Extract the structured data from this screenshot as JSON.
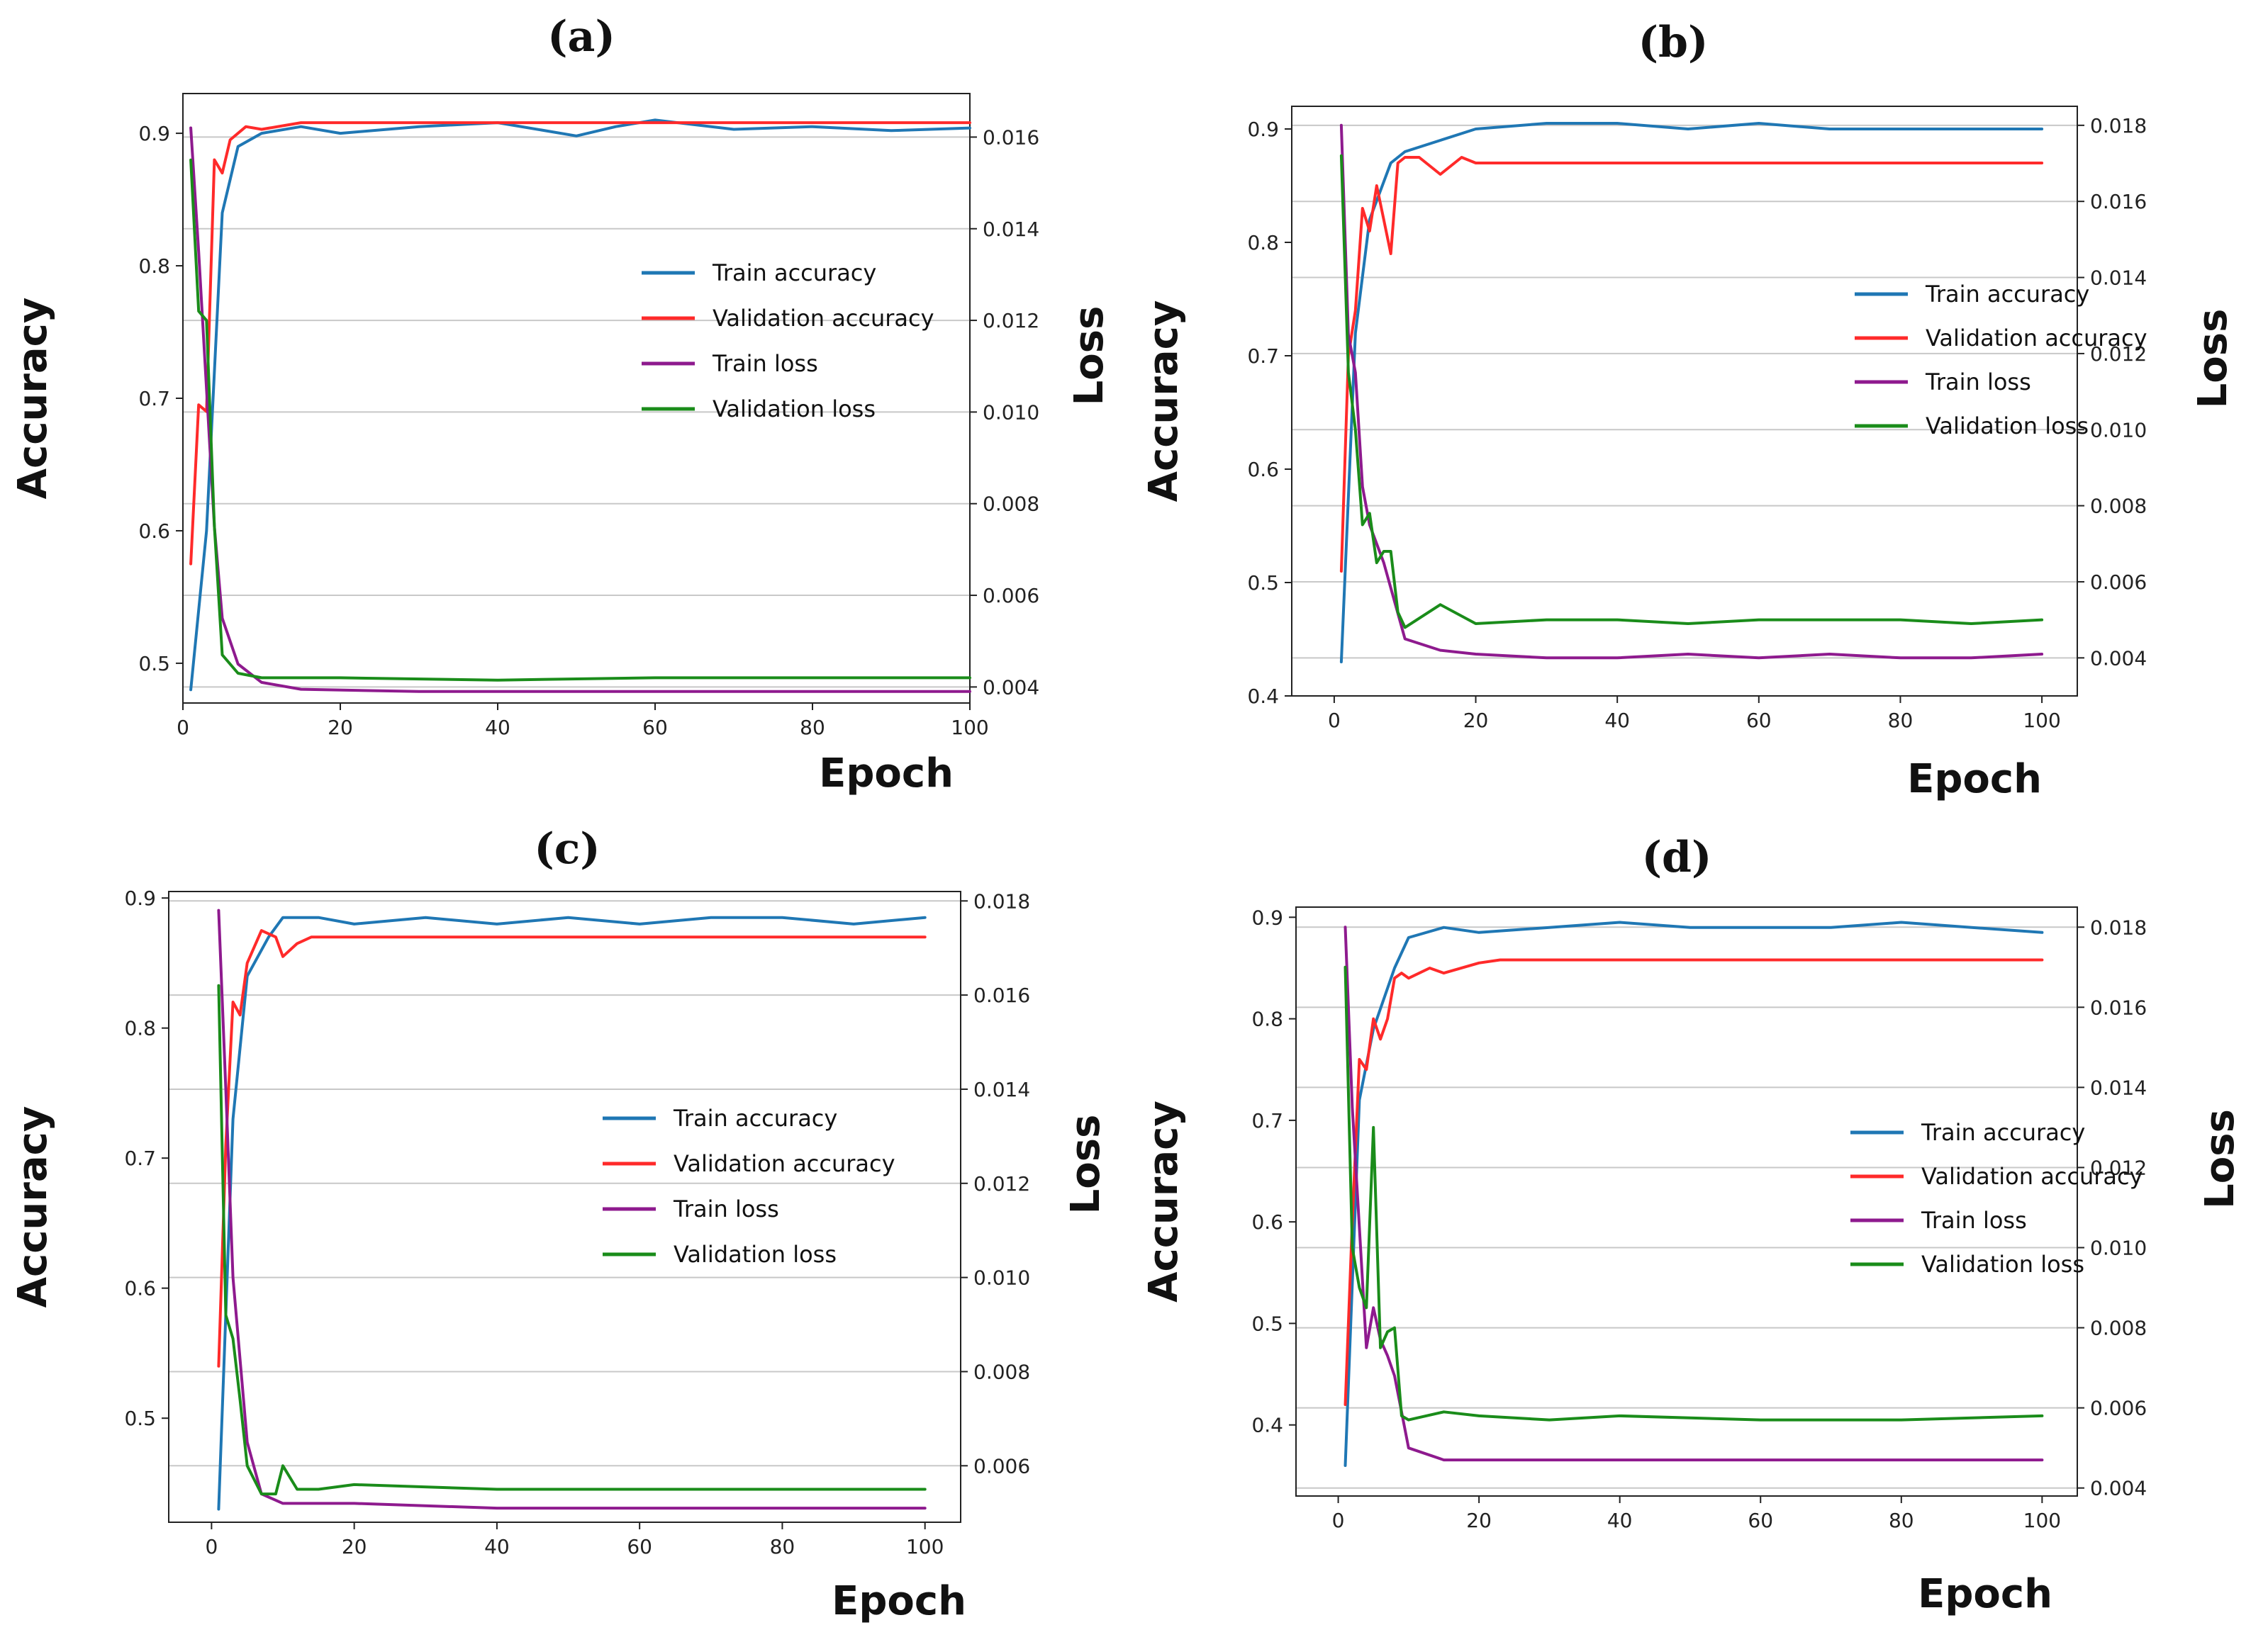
{
  "chart_data": [
    {
      "type": "line",
      "panel": "(a)",
      "xlabel": "Epoch",
      "ylabel": "Accuracy",
      "y2label": "Loss",
      "xlim": [
        0,
        100
      ],
      "ylim": [
        0.47,
        0.93
      ],
      "y2lim": [
        0.00365,
        0.01695
      ],
      "xticks": [
        0,
        20,
        40,
        60,
        80,
        100
      ],
      "yticks": [
        0.5,
        0.6,
        0.7,
        0.8,
        0.9
      ],
      "y2ticks": [
        0.004,
        0.006,
        0.008,
        0.01,
        0.012,
        0.014,
        0.016
      ],
      "legend": [
        "Train accuracy",
        "Validation accuracy",
        "Train loss",
        "Validation loss"
      ],
      "legend_position": "center-right",
      "series": [
        {
          "name": "Train accuracy",
          "axis": "left",
          "color": "#1f77b4",
          "x": [
            1,
            3,
            5,
            7,
            10,
            15,
            20,
            30,
            40,
            50,
            55,
            60,
            70,
            80,
            90,
            100
          ],
          "values": [
            0.48,
            0.6,
            0.84,
            0.89,
            0.9,
            0.905,
            0.9,
            0.905,
            0.908,
            0.898,
            0.905,
            0.91,
            0.903,
            0.905,
            0.902,
            0.904
          ]
        },
        {
          "name": "Validation accuracy",
          "axis": "left",
          "color": "#ff2a2a",
          "x": [
            1,
            2,
            3,
            4,
            5,
            6,
            8,
            10,
            15,
            100
          ],
          "values": [
            0.575,
            0.695,
            0.69,
            0.88,
            0.87,
            0.895,
            0.905,
            0.903,
            0.908,
            0.908
          ]
        },
        {
          "name": "Train loss",
          "axis": "right",
          "color": "#8e1a8e",
          "x": [
            1,
            2,
            3,
            4,
            5,
            7,
            10,
            15,
            30,
            50,
            70,
            90,
            100
          ],
          "values": [
            0.0162,
            0.0135,
            0.0105,
            0.0075,
            0.0055,
            0.0045,
            0.0041,
            0.00395,
            0.0039,
            0.0039,
            0.0039,
            0.0039,
            0.0039
          ]
        },
        {
          "name": "Validation loss",
          "axis": "right",
          "color": "#1a8c1a",
          "x": [
            1,
            2,
            3,
            4,
            5,
            7,
            10,
            20,
            40,
            60,
            80,
            100
          ],
          "values": [
            0.0155,
            0.0122,
            0.012,
            0.0075,
            0.0047,
            0.0043,
            0.0042,
            0.0042,
            0.00415,
            0.0042,
            0.0042,
            0.0042
          ]
        }
      ]
    },
    {
      "type": "line",
      "panel": "(b)",
      "xlabel": "Epoch",
      "ylabel": "Accuracy",
      "y2label": "Loss",
      "xlim": [
        -6,
        105
      ],
      "ylim": [
        0.4,
        0.92
      ],
      "y2lim": [
        0.003,
        0.0185
      ],
      "xticks": [
        0,
        20,
        40,
        60,
        80,
        100
      ],
      "yticks": [
        0.4,
        0.5,
        0.6,
        0.7,
        0.8,
        0.9
      ],
      "y2ticks": [
        0.004,
        0.006,
        0.008,
        0.01,
        0.012,
        0.014,
        0.016,
        0.018
      ],
      "legend": [
        "Train accuracy",
        "Validation accuracy",
        "Train loss",
        "Validation loss"
      ],
      "legend_position": "center-right",
      "series": [
        {
          "name": "Train accuracy",
          "axis": "left",
          "color": "#1f77b4",
          "x": [
            1,
            3,
            5,
            8,
            10,
            15,
            20,
            30,
            40,
            50,
            60,
            70,
            80,
            90,
            100
          ],
          "values": [
            0.43,
            0.72,
            0.82,
            0.87,
            0.88,
            0.89,
            0.9,
            0.905,
            0.905,
            0.9,
            0.905,
            0.9,
            0.9,
            0.9,
            0.9
          ]
        },
        {
          "name": "Validation accuracy",
          "axis": "left",
          "color": "#ff2a2a",
          "x": [
            1,
            2,
            3,
            4,
            5,
            6,
            7,
            8,
            9,
            10,
            12,
            15,
            18,
            20,
            100
          ],
          "values": [
            0.51,
            0.7,
            0.74,
            0.83,
            0.81,
            0.85,
            0.82,
            0.79,
            0.87,
            0.875,
            0.875,
            0.86,
            0.875,
            0.87,
            0.87
          ]
        },
        {
          "name": "Train loss",
          "axis": "right",
          "color": "#8e1a8e",
          "x": [
            1,
            2,
            3,
            4,
            5,
            7,
            10,
            15,
            20,
            30,
            40,
            50,
            60,
            70,
            80,
            90,
            100
          ],
          "values": [
            0.018,
            0.0125,
            0.0115,
            0.0085,
            0.0075,
            0.0065,
            0.0045,
            0.0042,
            0.0041,
            0.004,
            0.004,
            0.0041,
            0.004,
            0.0041,
            0.004,
            0.004,
            0.0041
          ]
        },
        {
          "name": "Validation loss",
          "axis": "right",
          "color": "#1a8c1a",
          "x": [
            1,
            2,
            3,
            4,
            5,
            6,
            7,
            8,
            9,
            10,
            15,
            20,
            30,
            40,
            50,
            60,
            70,
            80,
            90,
            100
          ],
          "values": [
            0.0172,
            0.0115,
            0.01,
            0.0075,
            0.0078,
            0.0065,
            0.0068,
            0.0068,
            0.0052,
            0.0048,
            0.0054,
            0.0049,
            0.005,
            0.005,
            0.0049,
            0.005,
            0.005,
            0.005,
            0.0049,
            0.005
          ]
        }
      ]
    },
    {
      "type": "line",
      "panel": "(c)",
      "xlabel": "Epoch",
      "ylabel": "Accuracy",
      "y2label": "Loss",
      "xlim": [
        -6,
        105
      ],
      "ylim": [
        0.42,
        0.905
      ],
      "y2lim": [
        0.0048,
        0.0182
      ],
      "xticks": [
        0,
        20,
        40,
        60,
        80,
        100
      ],
      "yticks": [
        0.5,
        0.6,
        0.7,
        0.8,
        0.9
      ],
      "y2ticks": [
        0.006,
        0.008,
        0.01,
        0.012,
        0.014,
        0.016,
        0.018
      ],
      "legend": [
        "Train accuracy",
        "Validation accuracy",
        "Train loss",
        "Validation loss"
      ],
      "legend_position": "center-right",
      "series": [
        {
          "name": "Train accuracy",
          "axis": "left",
          "color": "#1f77b4",
          "x": [
            1,
            3,
            5,
            8,
            10,
            15,
            20,
            30,
            40,
            50,
            60,
            70,
            80,
            90,
            100
          ],
          "values": [
            0.43,
            0.73,
            0.84,
            0.87,
            0.885,
            0.885,
            0.88,
            0.885,
            0.88,
            0.885,
            0.88,
            0.885,
            0.885,
            0.88,
            0.885
          ]
        },
        {
          "name": "Validation accuracy",
          "axis": "left",
          "color": "#ff2a2a",
          "x": [
            1,
            2,
            3,
            4,
            5,
            7,
            9,
            10,
            12,
            14,
            100
          ],
          "values": [
            0.54,
            0.71,
            0.82,
            0.81,
            0.85,
            0.875,
            0.87,
            0.855,
            0.865,
            0.87,
            0.87
          ]
        },
        {
          "name": "Train loss",
          "axis": "right",
          "color": "#8e1a8e",
          "x": [
            1,
            2,
            3,
            5,
            7,
            10,
            20,
            40,
            60,
            80,
            100
          ],
          "values": [
            0.0178,
            0.014,
            0.01,
            0.0065,
            0.0054,
            0.0052,
            0.0052,
            0.0051,
            0.0051,
            0.0051,
            0.0051
          ]
        },
        {
          "name": "Validation loss",
          "axis": "right",
          "color": "#1a8c1a",
          "x": [
            1,
            2,
            3,
            4,
            5,
            7,
            9,
            10,
            12,
            15,
            20,
            40,
            60,
            80,
            100
          ],
          "values": [
            0.0162,
            0.0092,
            0.0087,
            0.0074,
            0.006,
            0.0054,
            0.0054,
            0.006,
            0.0055,
            0.0055,
            0.0056,
            0.0055,
            0.0055,
            0.0055,
            0.0055
          ]
        }
      ]
    },
    {
      "type": "line",
      "panel": "(d)",
      "xlabel": "Epoch",
      "ylabel": "Accuracy",
      "y2label": "Loss",
      "xlim": [
        -6,
        105
      ],
      "ylim": [
        0.33,
        0.91
      ],
      "y2lim": [
        0.0038,
        0.0185
      ],
      "xticks": [
        0,
        20,
        40,
        60,
        80,
        100
      ],
      "yticks": [
        0.4,
        0.5,
        0.6,
        0.7,
        0.8,
        0.9
      ],
      "y2ticks": [
        0.004,
        0.006,
        0.008,
        0.01,
        0.012,
        0.014,
        0.016,
        0.018
      ],
      "legend": [
        "Train accuracy",
        "Validation accuracy",
        "Train loss",
        "Validation loss"
      ],
      "legend_position": "center-right",
      "series": [
        {
          "name": "Train accuracy",
          "axis": "left",
          "color": "#1f77b4",
          "x": [
            1,
            3,
            5,
            8,
            10,
            15,
            20,
            30,
            40,
            50,
            60,
            70,
            80,
            90,
            100
          ],
          "values": [
            0.36,
            0.72,
            0.79,
            0.85,
            0.88,
            0.89,
            0.885,
            0.89,
            0.895,
            0.89,
            0.89,
            0.89,
            0.895,
            0.89,
            0.885
          ]
        },
        {
          "name": "Validation accuracy",
          "axis": "left",
          "color": "#ff2a2a",
          "x": [
            1,
            2,
            3,
            4,
            5,
            6,
            7,
            8,
            9,
            10,
            13,
            15,
            20,
            23,
            100
          ],
          "values": [
            0.42,
            0.6,
            0.76,
            0.75,
            0.8,
            0.78,
            0.8,
            0.84,
            0.845,
            0.84,
            0.85,
            0.845,
            0.855,
            0.858,
            0.858
          ]
        },
        {
          "name": "Train loss",
          "axis": "right",
          "color": "#8e1a8e",
          "x": [
            1,
            2,
            3,
            4,
            5,
            6,
            7,
            8,
            10,
            15,
            20,
            40,
            60,
            80,
            100
          ],
          "values": [
            0.018,
            0.0135,
            0.0105,
            0.0075,
            0.0085,
            0.0077,
            0.0073,
            0.0068,
            0.005,
            0.0047,
            0.0047,
            0.0047,
            0.0047,
            0.0047,
            0.0047
          ]
        },
        {
          "name": "Validation loss",
          "axis": "right",
          "color": "#1a8c1a",
          "x": [
            1,
            2,
            3,
            4,
            5,
            6,
            7,
            8,
            9,
            10,
            15,
            20,
            30,
            40,
            60,
            80,
            100
          ],
          "values": [
            0.017,
            0.01,
            0.009,
            0.0085,
            0.013,
            0.0075,
            0.0079,
            0.008,
            0.0058,
            0.0057,
            0.0059,
            0.0058,
            0.0057,
            0.0058,
            0.0057,
            0.0057,
            0.0058
          ]
        }
      ]
    }
  ]
}
